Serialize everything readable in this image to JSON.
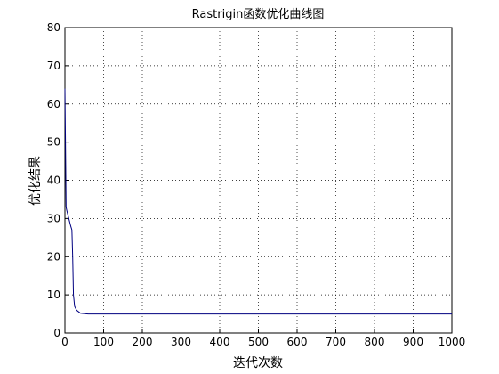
{
  "chart_data": {
    "type": "line",
    "title": "Rastrigin函数优化曲线图",
    "x_label": "迭代次数",
    "y_label": "优化结果",
    "series": [
      {
        "name": "优化结果",
        "color": "#000080",
        "x": [
          0,
          2,
          3,
          5,
          10,
          15,
          18,
          20,
          22,
          25,
          30,
          40,
          60,
          1000
        ],
        "values": [
          64,
          44,
          33,
          32,
          30,
          28,
          27,
          20,
          10,
          7,
          6,
          5.2,
          5,
          5
        ]
      }
    ],
    "xlim": [
      0,
      1000
    ],
    "xticks": [
      0,
      100,
      200,
      300,
      400,
      500,
      600,
      700,
      800,
      900,
      1000
    ],
    "ylim": [
      0,
      80
    ],
    "yticks": [
      0,
      10,
      20,
      30,
      40,
      50,
      60,
      70,
      80
    ],
    "grid": true
  }
}
